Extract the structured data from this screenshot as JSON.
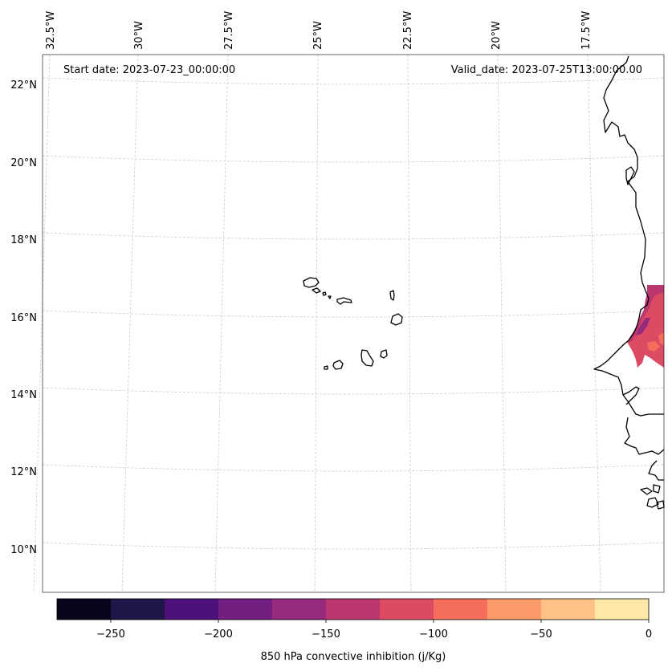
{
  "map": {
    "variable_label": "850 hPa convective inhibition (j/Kg)",
    "start_date_text": "Start date: 2023-07-23_00:00:00",
    "valid_date_text": "Valid_date: 2023-07-25T13:00:00.00",
    "lat_labels": [
      "22°N",
      "20°N",
      "18°N",
      "16°N",
      "14°N",
      "12°N",
      "10°N"
    ],
    "lat_values": [
      22,
      20,
      18,
      16,
      14,
      12,
      10
    ],
    "lon_labels": [
      "32.5°W",
      "30°W",
      "27.5°W",
      "25°W",
      "22.5°W",
      "20°W",
      "17.5°W"
    ],
    "lon_values": [
      -32.5,
      -30,
      -27.5,
      -25,
      -22.5,
      -20,
      -17.5
    ],
    "extent": {
      "lon_min": -32.6,
      "lon_max": -16.3,
      "lat_min": 8.9,
      "lat_max": 22.8
    }
  },
  "colorbar": {
    "tick_labels": [
      "−250",
      "−200",
      "−150",
      "−100",
      "−50",
      "0"
    ],
    "tick_values": [
      -250,
      -200,
      -150,
      -100,
      -50,
      0
    ],
    "range": [
      -275,
      0
    ],
    "levels": [
      -275,
      -250,
      -225,
      -200,
      -175,
      -150,
      -125,
      -100,
      -75,
      -50,
      -25,
      0
    ],
    "colors": [
      "#06051b",
      "#1f1548",
      "#4c1078",
      "#721f81",
      "#962a7d",
      "#ba3770",
      "#dc4a63",
      "#f46e5b",
      "#fd9a6a",
      "#fec287",
      "#fde8a7"
    ]
  },
  "cin_field": {
    "description_colors": {
      "pink_main": "#dc4a63",
      "magenta": "#ba3770",
      "purple": "#962a7d",
      "orange": "#f46e5b"
    },
    "max_value": -90,
    "min_value": -175
  }
}
